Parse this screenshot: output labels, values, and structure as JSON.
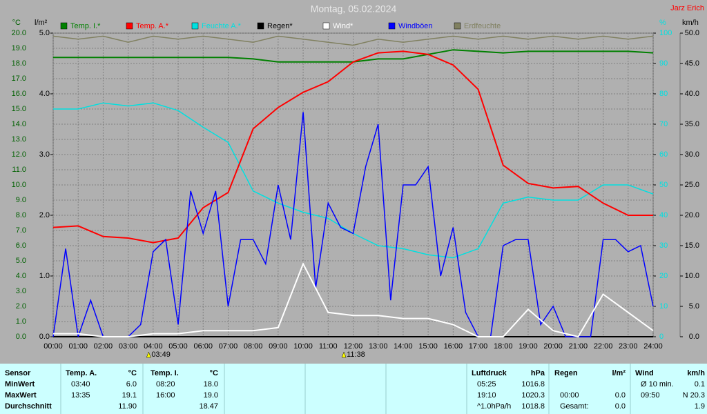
{
  "chart_data": {
    "type": "line",
    "title": "Montag, 05.02.2024",
    "author": "Jarz Erich",
    "axis_units": {
      "y": "°C",
      "y4": "l/m²",
      "y2": "%",
      "y3": "km/h"
    },
    "xlim": [
      0,
      24
    ],
    "xticks": [
      {
        "value": 0,
        "label": "00:00"
      },
      {
        "value": 1,
        "label": "01:00"
      },
      {
        "value": 2,
        "label": "02:00"
      },
      {
        "value": 3,
        "label": "03:00"
      },
      {
        "value": 4,
        "label": "04:00"
      },
      {
        "value": 5,
        "label": "05:00"
      },
      {
        "value": 6,
        "label": "06:00"
      },
      {
        "value": 7,
        "label": "07:00"
      },
      {
        "value": 8,
        "label": "08:00"
      },
      {
        "value": 9,
        "label": "09:00"
      },
      {
        "value": 10,
        "label": "10:00"
      },
      {
        "value": 11,
        "label": "11:00"
      },
      {
        "value": 12,
        "label": "12:00"
      },
      {
        "value": 13,
        "label": "13:00"
      },
      {
        "value": 14,
        "label": "14:00"
      },
      {
        "value": 15,
        "label": "15:00"
      },
      {
        "value": 16,
        "label": "16:00"
      },
      {
        "value": 17,
        "label": "17:00"
      },
      {
        "value": 18,
        "label": "18:00"
      },
      {
        "value": 19,
        "label": "19:00"
      },
      {
        "value": 20,
        "label": "20:00"
      },
      {
        "value": 21,
        "label": "21:00"
      },
      {
        "value": 22,
        "label": "22:00"
      },
      {
        "value": 23,
        "label": "23:00"
      },
      {
        "value": 24,
        "label": "24:00"
      }
    ],
    "ylim": [
      0,
      20
    ],
    "yticks": [
      {
        "value": 0,
        "label": "0.0"
      },
      {
        "value": 1,
        "label": "1.0"
      },
      {
        "value": 2,
        "label": "2.0"
      },
      {
        "value": 3,
        "label": "3.0"
      },
      {
        "value": 4,
        "label": "4.0"
      },
      {
        "value": 5,
        "label": "5.0"
      },
      {
        "value": 6,
        "label": "6.0"
      },
      {
        "value": 7,
        "label": "7.0"
      },
      {
        "value": 8,
        "label": "8.0"
      },
      {
        "value": 9,
        "label": "9.0"
      },
      {
        "value": 10,
        "label": "10.0"
      },
      {
        "value": 11,
        "label": "11.0"
      },
      {
        "value": 12,
        "label": "12.0"
      },
      {
        "value": 13,
        "label": "13.0"
      },
      {
        "value": 14,
        "label": "14.0"
      },
      {
        "value": 15,
        "label": "15.0"
      },
      {
        "value": 16,
        "label": "16.0"
      },
      {
        "value": 17,
        "label": "17.0"
      },
      {
        "value": 18,
        "label": "18.0"
      },
      {
        "value": 19,
        "label": "19.0"
      },
      {
        "value": 20,
        "label": "20.0"
      }
    ],
    "y4lim": [
      0,
      5
    ],
    "y4ticks": [
      {
        "value": 0,
        "label": "0.0"
      },
      {
        "value": 1,
        "label": "1.0"
      },
      {
        "value": 2,
        "label": "2.0"
      },
      {
        "value": 3,
        "label": "3.0"
      },
      {
        "value": 4,
        "label": "4.0"
      },
      {
        "value": 5,
        "label": "5.0"
      }
    ],
    "y2lim": [
      0,
      100
    ],
    "y2ticks": [
      0,
      10,
      20,
      30,
      40,
      50,
      60,
      70,
      80,
      90,
      100
    ],
    "y3lim": [
      0,
      50
    ],
    "y3ticks": [
      {
        "value": 0,
        "label": "0.0"
      },
      {
        "value": 5,
        "label": "5.0"
      },
      {
        "value": 10,
        "label": "10.0"
      },
      {
        "value": 15,
        "label": "15.0"
      },
      {
        "value": 20,
        "label": "20.0"
      },
      {
        "value": 25,
        "label": "25.0"
      },
      {
        "value": 30,
        "label": "30.0"
      },
      {
        "value": 35,
        "label": "35.0"
      },
      {
        "value": 40,
        "label": "40.0"
      },
      {
        "value": 45,
        "label": "45.0"
      },
      {
        "value": 50,
        "label": "50.0"
      }
    ],
    "grid": true,
    "series": [
      {
        "name": "Erdfeuchte",
        "color": "#808060",
        "axis": "y2",
        "x": [
          0,
          1,
          2,
          3,
          4,
          5,
          6,
          7,
          8,
          9,
          10,
          11,
          12,
          13,
          14,
          15,
          16,
          17,
          18,
          19,
          20,
          21,
          22,
          23,
          24
        ],
        "values": [
          99,
          98,
          99,
          97,
          99,
          98,
          99,
          98,
          97,
          99,
          98,
          97,
          96,
          98,
          97,
          98,
          99,
          98,
          99,
          98,
          99,
          98,
          99,
          98,
          99
        ]
      },
      {
        "name": "Feuchte A.*",
        "color": "#00e0e0",
        "axis": "y2",
        "x": [
          0,
          1,
          2,
          3,
          4,
          5,
          6,
          7,
          8,
          9,
          10,
          11,
          12,
          13,
          14,
          15,
          16,
          17,
          18,
          19,
          20,
          21,
          22,
          23,
          24
        ],
        "values": [
          75,
          75,
          77,
          76,
          77,
          74.5,
          69,
          64,
          48,
          44,
          41,
          39,
          34,
          30,
          29,
          27,
          26,
          29,
          44,
          46,
          45,
          45,
          50,
          50,
          47
        ]
      },
      {
        "name": "Temp. I.*",
        "color": "#008000",
        "axis": "y",
        "x": [
          0,
          1,
          2,
          3,
          4,
          5,
          6,
          7,
          8,
          9,
          10,
          11,
          12,
          13,
          14,
          15,
          16,
          17,
          18,
          19,
          20,
          21,
          22,
          23,
          24
        ],
        "values": [
          18.4,
          18.4,
          18.4,
          18.4,
          18.4,
          18.4,
          18.4,
          18.4,
          18.3,
          18.1,
          18.1,
          18.1,
          18.1,
          18.3,
          18.3,
          18.6,
          18.9,
          18.8,
          18.7,
          18.8,
          18.8,
          18.8,
          18.8,
          18.8,
          18.7
        ]
      },
      {
        "name": "Temp. A.*",
        "color": "#ff0000",
        "axis": "y",
        "x": [
          0,
          1,
          2,
          3,
          4,
          5,
          6,
          7,
          8,
          9,
          10,
          11,
          12,
          13,
          14,
          15,
          16,
          17,
          18,
          19,
          20,
          21,
          22,
          23,
          24
        ],
        "values": [
          7.2,
          7.3,
          6.6,
          6.5,
          6.2,
          6.5,
          8.5,
          9.5,
          13.7,
          15.1,
          16.1,
          16.8,
          18.1,
          18.7,
          18.8,
          18.6,
          17.9,
          16.3,
          11.3,
          10.1,
          9.8,
          9.9,
          8.8,
          8.0,
          8.0
        ]
      },
      {
        "name": "Regen*",
        "color": "#000000",
        "axis": "y4",
        "x": [
          0,
          1,
          2,
          3,
          4,
          5,
          6,
          7,
          8,
          9,
          10,
          11,
          12,
          13,
          14,
          15,
          16,
          17,
          18,
          19,
          20,
          21,
          22,
          23,
          24
        ],
        "values": [
          0,
          0,
          0,
          0,
          0,
          0,
          0,
          0,
          0,
          0,
          0,
          0,
          0,
          0,
          0,
          0,
          0,
          0,
          0,
          0,
          0,
          0,
          0,
          0,
          0
        ]
      },
      {
        "name": "Windböen",
        "color": "#0000ff",
        "axis": "y3",
        "x": [
          0,
          0.5,
          1,
          1.5,
          2,
          2.5,
          3,
          3.5,
          4,
          4.5,
          5,
          5.5,
          6,
          6.5,
          7,
          7.5,
          8,
          8.5,
          9,
          9.5,
          10,
          10.5,
          11,
          11.5,
          12,
          12.5,
          13,
          13.5,
          14,
          14.5,
          15,
          15.5,
          16,
          16.5,
          17,
          17.5,
          18,
          18.5,
          19,
          19.5,
          20,
          20.5,
          21,
          21.5,
          22,
          22.5,
          23,
          23.5,
          24
        ],
        "values": [
          0,
          14.5,
          0,
          6,
          0,
          0,
          0,
          2,
          14,
          16,
          2,
          24,
          17,
          24,
          5,
          16,
          16,
          12,
          25,
          16,
          37,
          8,
          22,
          18,
          17,
          28,
          35,
          6,
          25,
          25,
          28,
          10,
          18,
          4,
          0,
          0,
          15,
          16,
          16,
          2,
          5,
          0,
          0,
          0,
          16,
          16,
          14,
          15,
          5
        ]
      },
      {
        "name": "Wind*",
        "color": "#ffffff",
        "axis": "y3",
        "x": [
          0,
          1,
          2,
          3,
          4,
          5,
          6,
          7,
          8,
          9,
          10,
          11,
          12,
          13,
          14,
          15,
          16,
          17,
          18,
          19,
          20,
          21,
          22,
          23,
          24
        ],
        "values": [
          0.5,
          0.5,
          0,
          0,
          0.5,
          0.5,
          1,
          1,
          1,
          1.5,
          12,
          4,
          3.5,
          3.5,
          3,
          3,
          2,
          0,
          0,
          4.5,
          1,
          0,
          7,
          4,
          1
        ]
      }
    ],
    "annotations": [
      {
        "x": 3.82,
        "label": "03:49"
      },
      {
        "x": 11.63,
        "label": "11:38"
      }
    ]
  },
  "table": {
    "header": [
      "Sensor",
      "Temp. A.",
      "°C",
      "Temp. I.",
      "°C",
      "Luftdruck",
      "hPa",
      "Regen",
      "l/m²",
      "Wind",
      "km/h"
    ],
    "rows": [
      [
        "MinWert",
        "03:40",
        "6.0",
        "08:20",
        "18.0",
        "05:25",
        "1016.8",
        null,
        null,
        "Ø 10 min.",
        "0.1"
      ],
      [
        "MaxWert",
        "13:35",
        "19.1",
        "16:00",
        "19.0",
        "19:10",
        "1020.3",
        "00:00",
        "0.0",
        "09:50",
        "N 20.3"
      ],
      [
        "Durchschnitt",
        null,
        "11.90",
        null,
        "18.47",
        "^1.0hPa/h",
        "1018.8",
        "Gesamt:",
        "0.0",
        null,
        "1.9"
      ]
    ]
  }
}
